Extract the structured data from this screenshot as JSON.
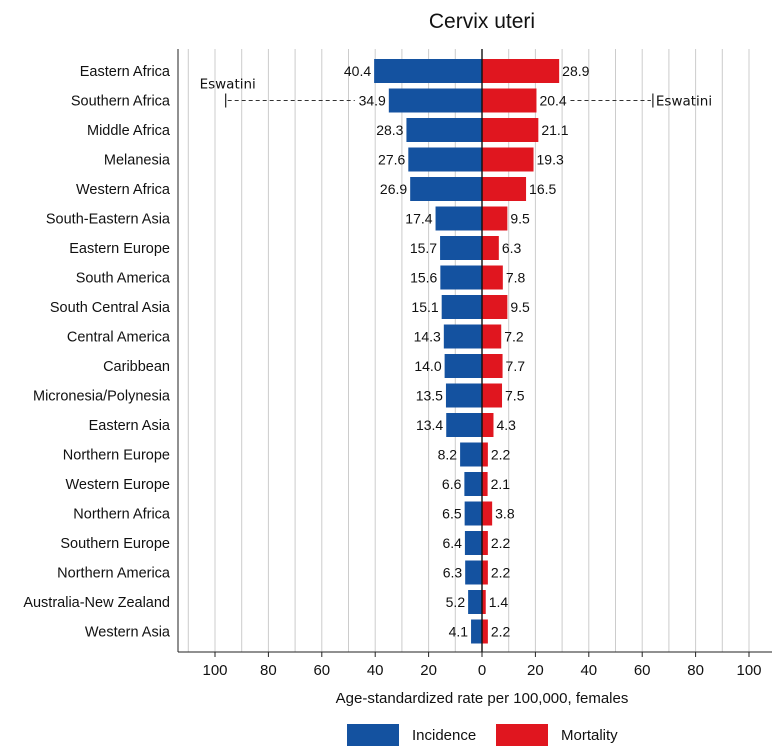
{
  "chart_data": {
    "type": "bar",
    "title": "Cervix uteri",
    "xlabel": "Age-standardized rate per 100,000, females",
    "xlim": [
      -100,
      100
    ],
    "xticks": [
      100,
      80,
      60,
      40,
      20,
      0,
      20,
      40,
      60,
      80,
      100
    ],
    "grid": true,
    "legend_position": "bottom",
    "categories": [
      "Eastern Africa",
      "Southern Africa",
      "Middle Africa",
      "Melanesia",
      "Western Africa",
      "South-Eastern Asia",
      "Eastern Europe",
      "South America",
      "South Central Asia",
      "Central America",
      "Caribbean",
      "Micronesia/Polynesia",
      "Eastern Asia",
      "Northern Europe",
      "Western Europe",
      "Northern Africa",
      "Southern Europe",
      "Northern America",
      "Australia-New Zealand",
      "Western Asia"
    ],
    "series": [
      {
        "name": "Incidence",
        "direction": "left",
        "color": "#1452a0",
        "values": [
          40.4,
          34.9,
          28.3,
          27.6,
          26.9,
          17.4,
          15.7,
          15.6,
          15.1,
          14.3,
          14.0,
          13.5,
          13.4,
          8.2,
          6.6,
          6.5,
          6.4,
          6.3,
          5.2,
          4.1
        ],
        "labels": [
          "40.4",
          "34.9",
          "28.3",
          "27.6",
          "26.9",
          "17.4",
          "15.7",
          "15.6",
          "15.1",
          "14.3",
          "14.0",
          "13.5",
          "13.4",
          "8.2",
          "6.6",
          "6.5",
          "6.4",
          "6.3",
          "5.2",
          "4.1"
        ]
      },
      {
        "name": "Mortality",
        "direction": "right",
        "color": "#e0161f",
        "values": [
          28.9,
          20.4,
          21.1,
          19.3,
          16.5,
          9.5,
          6.3,
          7.8,
          9.5,
          7.2,
          7.7,
          7.5,
          4.3,
          2.2,
          2.1,
          3.8,
          2.2,
          2.2,
          1.4,
          2.2
        ],
        "labels": [
          "28.9",
          "20.4",
          "21.1",
          "19.3",
          "16.5",
          "9.5",
          "6.3",
          "7.8",
          "9.5",
          "7.2",
          "7.7",
          "7.5",
          "4.3",
          "2.2",
          "2.1",
          "3.8",
          "2.2",
          "2.2",
          "1.4",
          "2.2"
        ]
      }
    ],
    "annotations": [
      {
        "category": "Southern Africa",
        "side": "Incidence",
        "label": "Eswatini",
        "value": 96
      },
      {
        "category": "Southern Africa",
        "side": "Mortality",
        "label": "Eswatini",
        "value": 64
      }
    ]
  }
}
